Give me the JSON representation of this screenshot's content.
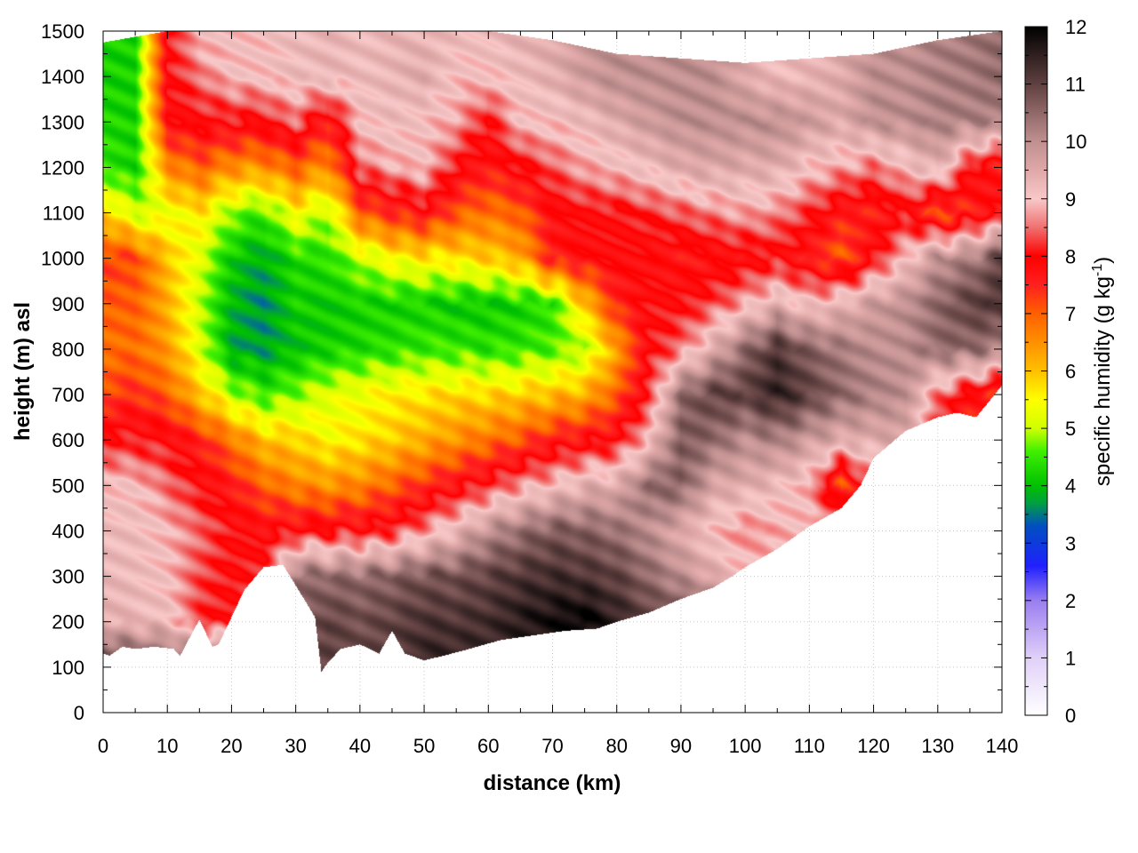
{
  "chart_data": {
    "type": "heatmap",
    "xlabel": "distance (km)",
    "ylabel": "height (m) asl",
    "xlim": [
      0,
      140
    ],
    "ylim": [
      0,
      1500
    ],
    "xticks": [
      "0",
      "10",
      "20",
      "30",
      "40",
      "50",
      "60",
      "70",
      "80",
      "90",
      "100",
      "110",
      "120",
      "130",
      "140"
    ],
    "yticks": [
      "0",
      "100",
      "200",
      "300",
      "400",
      "500",
      "600",
      "700",
      "800",
      "900",
      "1000",
      "1100",
      "1200",
      "1300",
      "1400",
      "1500"
    ],
    "grid": true,
    "colorbar": {
      "label_main": "specific humidity (g kg",
      "label_sup": "-1",
      "label_end": ")",
      "range": [
        0,
        12
      ],
      "ticks": [
        "0",
        "1",
        "2",
        "3",
        "4",
        "5",
        "6",
        "7",
        "8",
        "9",
        "10",
        "11",
        "12"
      ],
      "stops": [
        {
          "v": 0,
          "c": "#ffffff"
        },
        {
          "v": 1,
          "c": "#e0d0f8"
        },
        {
          "v": 2,
          "c": "#9a7ef0"
        },
        {
          "v": 2.6,
          "c": "#2020ff"
        },
        {
          "v": 3.3,
          "c": "#0050c0"
        },
        {
          "v": 3.7,
          "c": "#00a040"
        },
        {
          "v": 4,
          "c": "#00c000"
        },
        {
          "v": 4.6,
          "c": "#40f000"
        },
        {
          "v": 5,
          "c": "#d0ff00"
        },
        {
          "v": 5.5,
          "c": "#ffff00"
        },
        {
          "v": 6,
          "c": "#ffc000"
        },
        {
          "v": 7,
          "c": "#ff6000"
        },
        {
          "v": 7.5,
          "c": "#ff2020"
        },
        {
          "v": 8,
          "c": "#ff0000"
        },
        {
          "v": 8.5,
          "c": "#f07070"
        },
        {
          "v": 9,
          "c": "#f8c8c8"
        },
        {
          "v": 9.5,
          "c": "#e0a8a8"
        },
        {
          "v": 10,
          "c": "#c09090"
        },
        {
          "v": 10.5,
          "c": "#906868"
        },
        {
          "v": 11,
          "c": "#604040"
        },
        {
          "v": 11.5,
          "c": "#302020"
        },
        {
          "v": 12,
          "c": "#000000"
        }
      ]
    },
    "ground_profile": {
      "x": [
        0,
        1,
        3,
        5,
        8,
        11,
        12,
        15,
        17,
        18,
        20,
        22,
        25,
        28,
        30,
        33,
        34,
        35,
        37,
        40,
        43,
        45,
        47,
        50,
        53,
        57,
        62,
        67,
        72,
        77,
        80,
        85,
        90,
        95,
        98,
        100,
        105,
        110,
        115,
        118,
        120,
        125,
        130,
        133,
        136,
        140
      ],
      "height": [
        130,
        125,
        145,
        140,
        145,
        140,
        125,
        205,
        145,
        150,
        210,
        270,
        320,
        325,
        280,
        210,
        90,
        110,
        140,
        150,
        130,
        180,
        130,
        115,
        125,
        140,
        160,
        170,
        180,
        185,
        200,
        220,
        250,
        275,
        300,
        320,
        360,
        410,
        450,
        500,
        560,
        620,
        650,
        660,
        650,
        720
      ]
    },
    "top_profile": {
      "x": [
        0,
        10,
        20,
        30,
        40,
        50,
        60,
        70,
        80,
        90,
        100,
        110,
        120,
        130,
        140
      ],
      "height": [
        1475,
        1500,
        1500,
        1500,
        1500,
        1500,
        1500,
        1480,
        1450,
        1440,
        1430,
        1440,
        1450,
        1480,
        1500
      ]
    },
    "field": {
      "x": [
        0,
        5,
        10,
        15,
        20,
        25,
        30,
        35,
        40,
        45,
        50,
        55,
        60,
        65,
        70,
        75,
        80,
        85,
        90,
        95,
        100,
        105,
        110,
        115,
        120,
        125,
        130,
        135,
        140
      ],
      "height": [
        100,
        200,
        300,
        400,
        500,
        600,
        700,
        800,
        900,
        1000,
        1100,
        1200,
        1300,
        1400,
        1500
      ],
      "q": [
        [
          11.5,
          11.0,
          11.0,
          11.0,
          11.0,
          11.0,
          11.0,
          11.0,
          11.0,
          11.0,
          11.5,
          11.5,
          11.5,
          11.5,
          11.5,
          11.5,
          11.0,
          11.0,
          11.0,
          11.0,
          11.0,
          11.0,
          11.0,
          11.0,
          11.0,
          11.0,
          11.0,
          11.0,
          11.0
        ],
        [
          9.4,
          9.3,
          9.2,
          8.2,
          8.0,
          8.5,
          10.5,
          11.0,
          10.8,
          11.0,
          11.2,
          11.2,
          11.3,
          11.6,
          11.8,
          12.0,
          11.5,
          11.0,
          11.0,
          11.0,
          11.0,
          11.0,
          11.0,
          11.0,
          11.0,
          11.0,
          11.0,
          11.0,
          11.0
        ],
        [
          9.3,
          9.2,
          9.0,
          8.3,
          8.0,
          8.2,
          10.5,
          10.5,
          10.5,
          10.6,
          10.8,
          10.8,
          11.0,
          11.2,
          11.3,
          11.2,
          11.0,
          10.5,
          10.0,
          9.5,
          9.0,
          9.0,
          9.0,
          9.0,
          9.0,
          9.0,
          9.0,
          9.0,
          9.0
        ],
        [
          9.2,
          9.2,
          8.9,
          8.5,
          8.0,
          7.8,
          8.0,
          8.0,
          8.0,
          8.2,
          8.7,
          9.3,
          10.0,
          10.4,
          10.7,
          10.6,
          10.4,
          10.0,
          9.5,
          9.0,
          8.6,
          8.8,
          9.0,
          9.0,
          8.5,
          9.0,
          9.0,
          9.0,
          9.0
        ],
        [
          9.0,
          9.0,
          8.5,
          8.0,
          7.6,
          7.0,
          6.6,
          6.5,
          6.6,
          7.0,
          7.4,
          7.8,
          8.2,
          8.7,
          9.0,
          9.4,
          9.5,
          10.5,
          10.6,
          9.6,
          9.5,
          9.2,
          8.8,
          7.0,
          8.5,
          9.0,
          9.2,
          9.2,
          9.2
        ],
        [
          8.1,
          8.1,
          8.0,
          7.5,
          6.8,
          6.0,
          5.9,
          5.5,
          5.7,
          5.9,
          6.2,
          6.5,
          6.8,
          7.1,
          7.6,
          7.8,
          8.0,
          9.0,
          10.7,
          10.5,
          10.0,
          10.2,
          9.8,
          9.5,
          9.5,
          9.6,
          8.0,
          7.2,
          9.0
        ],
        [
          7.2,
          7.4,
          7.0,
          6.0,
          5.0,
          4.5,
          4.8,
          5.2,
          5.4,
          5.6,
          5.7,
          5.8,
          5.8,
          5.9,
          6.0,
          6.2,
          7.0,
          8.2,
          10.5,
          11.0,
          11.0,
          11.5,
          11.0,
          10.5,
          10.2,
          10.0,
          8.5,
          7.8,
          7.2
        ],
        [
          6.8,
          6.9,
          6.4,
          5.2,
          3.8,
          3.7,
          4.0,
          4.2,
          4.3,
          4.4,
          4.5,
          4.5,
          4.4,
          4.5,
          4.6,
          4.9,
          6.3,
          8.0,
          8.5,
          9.5,
          10.5,
          11.2,
          10.6,
          10.3,
          10.0,
          10.0,
          10.5,
          10.5,
          10.2
        ],
        [
          7.0,
          7.0,
          6.2,
          5.0,
          3.9,
          3.6,
          4.2,
          4.1,
          4.2,
          4.2,
          4.2,
          4.1,
          4.1,
          4.2,
          4.4,
          6.0,
          7.5,
          8.0,
          8.0,
          8.3,
          8.8,
          9.4,
          9.0,
          9.3,
          9.8,
          10.0,
          10.5,
          11.0,
          11.2
        ],
        [
          7.3,
          7.2,
          6.0,
          5.2,
          4.1,
          3.8,
          4.3,
          4.4,
          5.0,
          5.5,
          5.6,
          5.7,
          5.9,
          6.2,
          7.6,
          7.8,
          7.9,
          7.8,
          7.6,
          7.7,
          7.8,
          8.0,
          7.5,
          7.0,
          8.0,
          9.0,
          10.0,
          10.2,
          11.0
        ],
        [
          6.0,
          5.0,
          5.3,
          5.7,
          4.8,
          4.5,
          5.5,
          4.9,
          7.0,
          7.4,
          7.8,
          7.1,
          6.8,
          7.0,
          7.8,
          8.0,
          8.0,
          8.2,
          8.4,
          8.6,
          8.8,
          8.6,
          8.2,
          7.6,
          7.5,
          8.0,
          7.0,
          7.5,
          8.0
        ],
        [
          4.5,
          4.2,
          6.5,
          7.0,
          6.5,
          6.5,
          7.0,
          6.5,
          8.5,
          8.8,
          9.0,
          8.0,
          7.6,
          8.0,
          8.4,
          8.8,
          9.0,
          9.2,
          9.5,
          9.6,
          9.5,
          9.5,
          9.0,
          8.8,
          8.5,
          9.0,
          9.5,
          8.0,
          7.5
        ],
        [
          4.3,
          4.2,
          7.8,
          8.0,
          8.0,
          8.0,
          8.5,
          7.5,
          9.0,
          9.2,
          9.0,
          8.8,
          8.0,
          9.0,
          9.0,
          9.2,
          9.5,
          9.8,
          10.0,
          10.0,
          10.0,
          10.0,
          9.8,
          9.5,
          10.0,
          10.0,
          10.2,
          10.2,
          10.2
        ],
        [
          4.2,
          4.2,
          8.0,
          8.5,
          9.0,
          9.0,
          9.2,
          9.3,
          9.2,
          9.3,
          9.5,
          9.0,
          9.0,
          9.2,
          9.4,
          9.8,
          10.0,
          10.0,
          10.0,
          10.0,
          9.5,
          9.2,
          9.3,
          9.5,
          10.0,
          10.0,
          10.2,
          10.3,
          10.5
        ],
        [
          4.2,
          4.2,
          8.0,
          9.0,
          9.0,
          9.0,
          9.2,
          9.3,
          9.2,
          9.3,
          9.3,
          9.2,
          9.2,
          9.4,
          9.5,
          9.8,
          10.0,
          10.0,
          10.0,
          10.0,
          9.5,
          9.2,
          9.3,
          9.5,
          10.0,
          10.0,
          10.2,
          10.3,
          10.5
        ]
      ]
    }
  }
}
